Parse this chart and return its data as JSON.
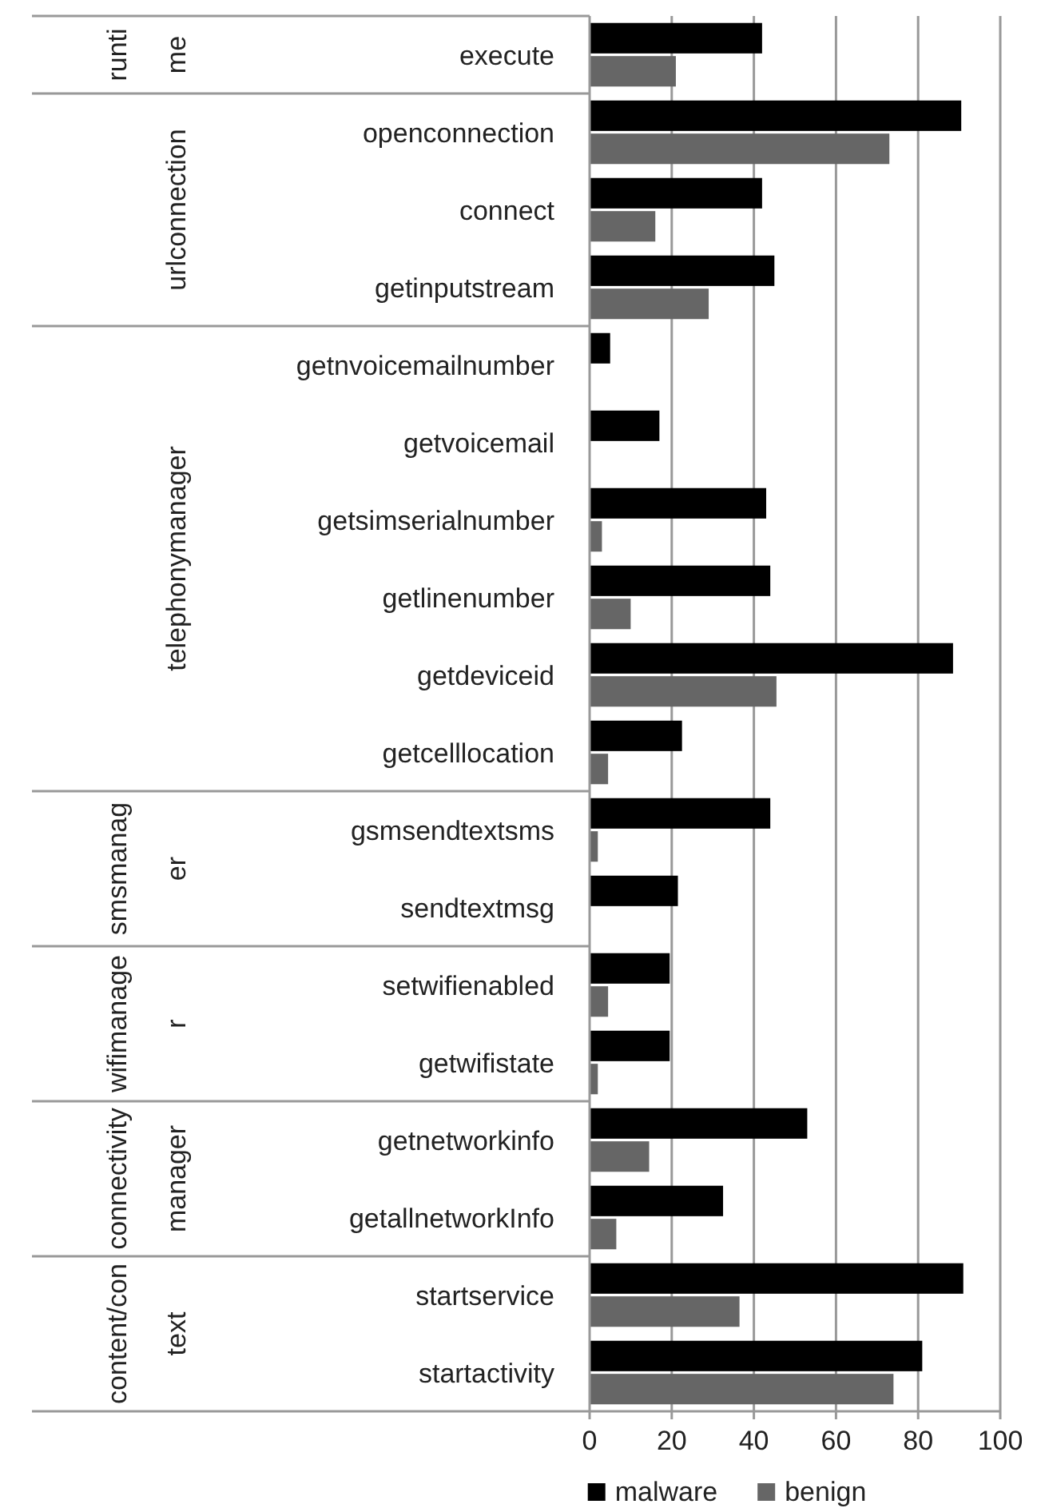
{
  "chart_data": {
    "type": "bar",
    "orientation": "horizontal",
    "categories": [
      "execute",
      "openconnection",
      "connect",
      "getinputstream",
      "getnvoicemailnumber",
      "getvoicemail",
      "getsimserialnumber",
      "getlinenumber",
      "getdeviceid",
      "getcelllocation",
      "gsmsendtextsms",
      "sendtextmsg",
      "setwifienabled",
      "getwifistate",
      "getnetworkinfo",
      "getallnetworkInfo",
      "startservice",
      "startactivity"
    ],
    "series": [
      {
        "name": "malware",
        "color": "#000000",
        "values": [
          42,
          90.5,
          42,
          45,
          5,
          17,
          43,
          44,
          88.5,
          22.5,
          44,
          21.5,
          19.5,
          19.5,
          53,
          32.5,
          91,
          81
        ]
      },
      {
        "name": "benign",
        "color": "#666666",
        "values": [
          21,
          73,
          16,
          29,
          null,
          null,
          3,
          10,
          45.5,
          4.5,
          2,
          null,
          4.5,
          2,
          14.5,
          6.5,
          36.5,
          74
        ]
      }
    ],
    "xlim": [
      0,
      100
    ],
    "xticks": [
      0,
      20,
      40,
      60,
      80,
      100
    ],
    "grid": "x",
    "legend": "bottom",
    "annotations": [
      "runtime",
      "urlconnection",
      "telephonymanager",
      "smsmanager",
      "wifimanager",
      "connectivitymanager",
      "content/context"
    ]
  }
}
